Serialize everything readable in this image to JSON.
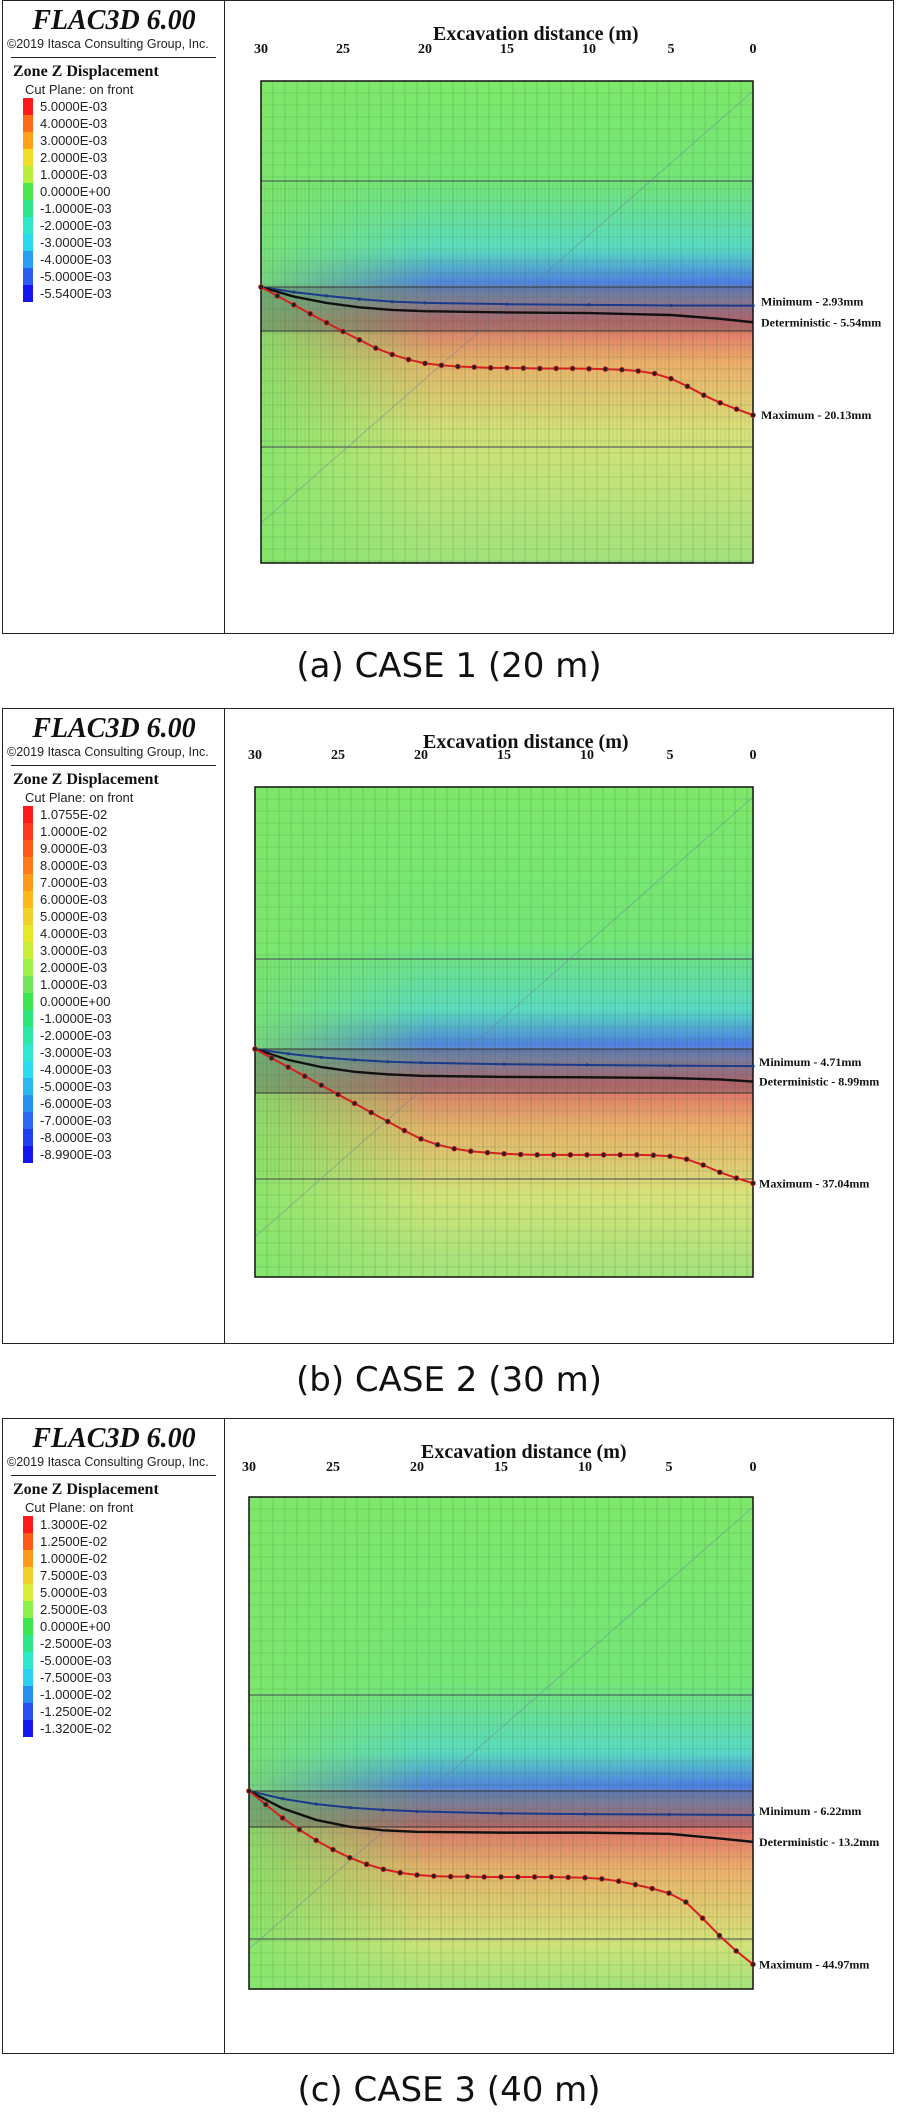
{
  "chart_data": [
    {
      "type": "line",
      "software_title": "FLAC3D 6.00",
      "copyright": "©2019 Itasca Consulting Group, Inc.",
      "legend_title": "Zone Z Displacement",
      "cut_plane": "Cut Plane: on front",
      "legend_items": [
        {
          "label": "5.0000E-03",
          "color": "#ff1a1a"
        },
        {
          "label": "4.0000E-03",
          "color": "#ff6a1a"
        },
        {
          "label": "3.0000E-03",
          "color": "#ffa21a"
        },
        {
          "label": "2.0000E-03",
          "color": "#f2dd2a"
        },
        {
          "label": "1.0000E-03",
          "color": "#b9ee3a"
        },
        {
          "label": "0.0000E+00",
          "color": "#4ee64e"
        },
        {
          "label": "-1.0000E-03",
          "color": "#2de58a"
        },
        {
          "label": "-2.0000E-03",
          "color": "#2ee8cc"
        },
        {
          "label": "-3.0000E-03",
          "color": "#2cd8ef"
        },
        {
          "label": "-4.0000E-03",
          "color": "#2a9ef0"
        },
        {
          "label": "-5.0000E-03",
          "color": "#2a5df0"
        },
        {
          "label": "-5.5400E-03",
          "color": "#1515f0"
        }
      ],
      "xlabel": "Excavation distance (m)",
      "x_ticks": [
        "30",
        "25",
        "20",
        "15",
        "10",
        "5",
        "0"
      ],
      "xlim": [
        30,
        0
      ],
      "ylabel": "",
      "series": [
        {
          "name": "Minimum",
          "label": "Minimum - 2.93mm",
          "color": "#1a3a8a",
          "x": [
            30,
            28,
            26,
            24,
            22,
            20,
            15,
            10,
            5,
            0
          ],
          "y": [
            0,
            0.8,
            1.4,
            1.9,
            2.3,
            2.5,
            2.7,
            2.8,
            2.9,
            2.93
          ]
        },
        {
          "name": "Deterministic",
          "label": "Deterministic - 5.54mm",
          "color": "#111111",
          "x": [
            30,
            28,
            26,
            24,
            22,
            20,
            15,
            10,
            5,
            2,
            0
          ],
          "y": [
            0,
            1.5,
            2.5,
            3.2,
            3.6,
            3.8,
            4.0,
            4.1,
            4.4,
            5.0,
            5.54
          ]
        },
        {
          "name": "Maximum",
          "label": "Maximum - 20.13mm",
          "color": "#d42020",
          "x": [
            30,
            29,
            28,
            27,
            26,
            25,
            24,
            23,
            22,
            21,
            20,
            19,
            18,
            17,
            16,
            15,
            14,
            13,
            12,
            11,
            10,
            9,
            8,
            7,
            6,
            5,
            4,
            3,
            2,
            1,
            0
          ],
          "y": [
            0,
            1.4,
            2.8,
            4.2,
            5.6,
            7.0,
            8.3,
            9.6,
            10.6,
            11.4,
            12.0,
            12.3,
            12.5,
            12.6,
            12.7,
            12.7,
            12.75,
            12.8,
            12.8,
            12.8,
            12.85,
            12.9,
            13.0,
            13.2,
            13.6,
            14.4,
            15.6,
            17.0,
            18.2,
            19.2,
            20.13
          ]
        }
      ],
      "caption": "(a) CASE 1 (20 m)"
    },
    {
      "type": "line",
      "software_title": "FLAC3D 6.00",
      "copyright": "©2019 Itasca Consulting Group, Inc.",
      "legend_title": "Zone Z Displacement",
      "cut_plane": "Cut Plane: on front",
      "legend_items": [
        {
          "label": "1.0755E-02",
          "color": "#ff1a1a"
        },
        {
          "label": "1.0000E-02",
          "color": "#ff3a1a"
        },
        {
          "label": "9.0000E-03",
          "color": "#ff5a1a"
        },
        {
          "label": "8.0000E-03",
          "color": "#ff7a1a"
        },
        {
          "label": "7.0000E-03",
          "color": "#ff9a1a"
        },
        {
          "label": "6.0000E-03",
          "color": "#ffb81a"
        },
        {
          "label": "5.0000E-03",
          "color": "#f2d22a"
        },
        {
          "label": "4.0000E-03",
          "color": "#e8e82a"
        },
        {
          "label": "3.0000E-03",
          "color": "#c8ee3a"
        },
        {
          "label": "2.0000E-03",
          "color": "#9ef04a"
        },
        {
          "label": "1.0000E-03",
          "color": "#6ee85a"
        },
        {
          "label": "0.0000E+00",
          "color": "#3ee64e"
        },
        {
          "label": "-1.0000E-03",
          "color": "#2de57a"
        },
        {
          "label": "-2.0000E-03",
          "color": "#2ee8a8"
        },
        {
          "label": "-3.0000E-03",
          "color": "#2ee8d0"
        },
        {
          "label": "-4.0000E-03",
          "color": "#2cdcf0"
        },
        {
          "label": "-5.0000E-03",
          "color": "#2ab8f0"
        },
        {
          "label": "-6.0000E-03",
          "color": "#2a90f0"
        },
        {
          "label": "-7.0000E-03",
          "color": "#2a68f0"
        },
        {
          "label": "-8.0000E-03",
          "color": "#2040f0"
        },
        {
          "label": "-8.9900E-03",
          "color": "#1515f0"
        }
      ],
      "xlabel": "Excavation distance (m)",
      "x_ticks": [
        "30",
        "25",
        "20",
        "15",
        "10",
        "5",
        "0"
      ],
      "xlim": [
        30,
        0
      ],
      "ylabel": "",
      "series": [
        {
          "name": "Minimum",
          "label": "Minimum - 4.71mm",
          "color": "#1a3a8a",
          "x": [
            30,
            28,
            26,
            24,
            22,
            20,
            15,
            10,
            5,
            0
          ],
          "y": [
            0,
            1.3,
            2.3,
            3.0,
            3.5,
            3.8,
            4.2,
            4.4,
            4.6,
            4.71
          ]
        },
        {
          "name": "Deterministic",
          "label": "Deterministic - 8.99mm",
          "color": "#111111",
          "x": [
            30,
            28,
            26,
            24,
            22,
            20,
            15,
            10,
            5,
            2,
            0
          ],
          "y": [
            0,
            3.0,
            5.0,
            6.3,
            7.0,
            7.4,
            7.7,
            7.8,
            8.0,
            8.4,
            8.99
          ]
        },
        {
          "name": "Maximum",
          "label": "Maximum - 37.04mm",
          "color": "#d42020",
          "x": [
            30,
            29,
            28,
            27,
            26,
            25,
            24,
            23,
            22,
            21,
            20,
            19,
            18,
            17,
            16,
            15,
            14,
            13,
            12,
            11,
            10,
            9,
            8,
            7,
            6,
            5,
            4,
            3,
            2,
            1,
            0
          ],
          "y": [
            0,
            2.5,
            5.0,
            7.5,
            10.0,
            12.5,
            15.0,
            17.5,
            20.0,
            22.5,
            24.8,
            26.4,
            27.5,
            28.2,
            28.6,
            28.9,
            29.1,
            29.2,
            29.2,
            29.2,
            29.2,
            29.2,
            29.2,
            29.2,
            29.3,
            29.6,
            30.4,
            32.0,
            34.0,
            35.6,
            37.04
          ]
        }
      ],
      "caption": "(b) CASE 2 (30 m)"
    },
    {
      "type": "line",
      "software_title": "FLAC3D 6.00",
      "copyright": "©2019 Itasca Consulting Group, Inc.",
      "legend_title": "Zone Z Displacement",
      "cut_plane": "Cut Plane: on front",
      "legend_items": [
        {
          "label": "1.3000E-02",
          "color": "#ff1a1a"
        },
        {
          "label": "1.2500E-02",
          "color": "#ff5a1a"
        },
        {
          "label": "1.0000E-02",
          "color": "#ff9a1a"
        },
        {
          "label": "7.5000E-03",
          "color": "#f2d22a"
        },
        {
          "label": "5.0000E-03",
          "color": "#d8ee3a"
        },
        {
          "label": "2.5000E-03",
          "color": "#8ef04a"
        },
        {
          "label": "0.0000E+00",
          "color": "#3ee64e"
        },
        {
          "label": "-2.5000E-03",
          "color": "#2de58a"
        },
        {
          "label": "-5.0000E-03",
          "color": "#2ee8cc"
        },
        {
          "label": "-7.5000E-03",
          "color": "#2cd0f0"
        },
        {
          "label": "-1.0000E-02",
          "color": "#2a90f0"
        },
        {
          "label": "-1.2500E-02",
          "color": "#2a50f0"
        },
        {
          "label": "-1.3200E-02",
          "color": "#1515f0"
        }
      ],
      "xlabel": "Excavation distance (m)",
      "x_ticks": [
        "30",
        "25",
        "20",
        "15",
        "10",
        "5",
        "0"
      ],
      "xlim": [
        30,
        0
      ],
      "ylabel": "",
      "series": [
        {
          "name": "Minimum",
          "label": "Minimum - 6.22mm",
          "color": "#1a3a8a",
          "x": [
            30,
            28,
            26,
            24,
            22,
            20,
            15,
            10,
            5,
            0
          ],
          "y": [
            0,
            2.0,
            3.4,
            4.3,
            4.9,
            5.3,
            5.8,
            6.0,
            6.1,
            6.22
          ]
        },
        {
          "name": "Deterministic",
          "label": "Deterministic - 13.2mm",
          "color": "#111111",
          "x": [
            30,
            28,
            26,
            24,
            22,
            20,
            15,
            10,
            5,
            2,
            0
          ],
          "y": [
            0,
            4.5,
            7.5,
            9.3,
            10.2,
            10.6,
            10.8,
            10.8,
            11.1,
            12.3,
            13.2
          ]
        },
        {
          "name": "Maximum",
          "label": "Maximum - 44.97mm",
          "color": "#d42020",
          "x": [
            30,
            29,
            28,
            27,
            26,
            25,
            24,
            23,
            22,
            21,
            20,
            19,
            18,
            17,
            16,
            15,
            14,
            13,
            12,
            11,
            10,
            9,
            8,
            7,
            6,
            5,
            4,
            3,
            2,
            1,
            0
          ],
          "y": [
            0,
            3.5,
            7.0,
            10.0,
            12.8,
            15.2,
            17.3,
            19.0,
            20.3,
            21.2,
            21.8,
            22.1,
            22.2,
            22.2,
            22.3,
            22.3,
            22.3,
            22.3,
            22.3,
            22.4,
            22.5,
            22.8,
            23.4,
            24.3,
            25.3,
            26.5,
            28.8,
            33.0,
            37.5,
            41.5,
            44.97
          ]
        }
      ],
      "caption": "(c) CASE 3 (40 m)"
    }
  ]
}
